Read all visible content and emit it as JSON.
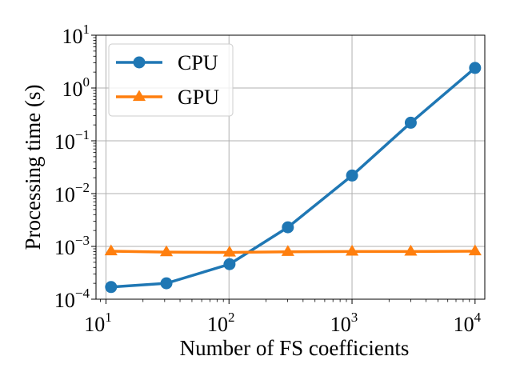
{
  "chart_data": {
    "type": "line",
    "xlabel": "Number of FS coefficients",
    "ylabel": "Processing time (s)",
    "xscale": "log",
    "yscale": "log",
    "xlim": [
      8.3,
      12000
    ],
    "ylim": [
      0.0001,
      10
    ],
    "grid": true,
    "legend_position": "top-left",
    "x_ticks": [
      {
        "base": "10",
        "exp": "1",
        "value": 10
      },
      {
        "base": "10",
        "exp": "2",
        "value": 100
      },
      {
        "base": "10",
        "exp": "3",
        "value": 1000
      },
      {
        "base": "10",
        "exp": "4",
        "value": 10000
      }
    ],
    "y_ticks": [
      {
        "base": "10",
        "exp": "−4",
        "value": 0.0001
      },
      {
        "base": "10",
        "exp": "−3",
        "value": 0.001
      },
      {
        "base": "10",
        "exp": "−2",
        "value": 0.01
      },
      {
        "base": "10",
        "exp": "−1",
        "value": 0.1
      },
      {
        "base": "10",
        "exp": "0",
        "value": 1
      },
      {
        "base": "10",
        "exp": "1",
        "value": 10
      }
    ],
    "x": [
      11,
      31,
      101,
      301,
      1001,
      3001,
      10001
    ],
    "series": [
      {
        "name": "CPU",
        "marker": "circle",
        "color": "#1f77b4",
        "values": [
          0.00017,
          0.0002,
          0.00046,
          0.0023,
          0.022,
          0.22,
          2.4
        ]
      },
      {
        "name": "GPU",
        "marker": "triangle",
        "color": "#ff7f0e",
        "values": [
          0.00081,
          0.00078,
          0.00077,
          0.00079,
          0.0008,
          0.0008,
          0.00081
        ]
      }
    ]
  }
}
